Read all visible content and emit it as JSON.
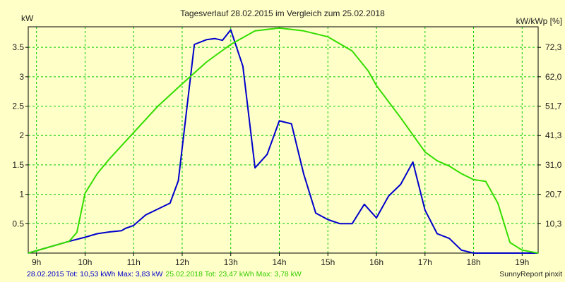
{
  "chart_data": {
    "type": "line",
    "title": "Tagesverlauf 28.02.2015 im Vergleich zum 25.02.2018",
    "ylabel_left": "kW",
    "ylabel_right": "kW/kWp [%]",
    "x_ticks": [
      "9h",
      "10h",
      "11h",
      "12h",
      "13h",
      "14h",
      "15h",
      "16h",
      "17h",
      "18h",
      "19h"
    ],
    "xlim": [
      8.83,
      19.33
    ],
    "y_left_ticks": [
      0.5,
      1,
      1.5,
      2,
      2.5,
      3,
      3.5
    ],
    "y_left_tick_labels": [
      "0.5",
      "1",
      "1.5",
      "2",
      "2.5",
      "3",
      "3.5"
    ],
    "ylim": [
      0,
      3.85
    ],
    "y_right_ticks": [
      10.3,
      20.7,
      31.0,
      41.3,
      51.7,
      62.0,
      72.3
    ],
    "y_right_tick_labels": [
      "10,3",
      "20,7",
      "31,0",
      "41,3",
      "51,7",
      "62,0",
      "72,3"
    ],
    "grid": true,
    "colors": {
      "background": "#ffffc8",
      "grid": "#00cc00",
      "axis": "#000000"
    },
    "series": [
      {
        "color": "#0000cc",
        "x": [
          8.83,
          9.67,
          10.0,
          10.25,
          10.5,
          10.75,
          10.83,
          11.0,
          11.25,
          11.5,
          11.75,
          11.92,
          12.25,
          12.5,
          12.67,
          12.83,
          13.0,
          13.25,
          13.5,
          13.75,
          14.0,
          14.25,
          14.5,
          14.75,
          15.0,
          15.25,
          15.5,
          15.75,
          16.0,
          16.25,
          16.5,
          16.75,
          17.0,
          17.25,
          17.5,
          17.75,
          18.0,
          18.25,
          19.33
        ],
        "y": [
          0.0,
          0.2,
          0.27,
          0.33,
          0.36,
          0.38,
          0.42,
          0.47,
          0.65,
          0.75,
          0.85,
          1.23,
          3.55,
          3.63,
          3.65,
          3.62,
          3.8,
          3.18,
          1.45,
          1.68,
          2.25,
          2.2,
          1.35,
          0.68,
          0.57,
          0.5,
          0.5,
          0.83,
          0.6,
          0.97,
          1.17,
          1.55,
          0.73,
          0.33,
          0.25,
          0.05,
          0.0,
          0.0,
          0.0
        ]
      },
      {
        "color": "#33dd00",
        "x": [
          8.83,
          9.67,
          9.83,
          10.0,
          10.25,
          10.5,
          11.0,
          11.5,
          12.0,
          12.5,
          13.0,
          13.5,
          14.0,
          14.5,
          15.0,
          15.5,
          15.83,
          16.0,
          16.5,
          17.0,
          17.25,
          17.5,
          17.75,
          18.0,
          18.25,
          18.5,
          18.75,
          19.0,
          19.33
        ],
        "y": [
          0.0,
          0.2,
          0.35,
          1.02,
          1.35,
          1.6,
          2.05,
          2.5,
          2.88,
          3.25,
          3.55,
          3.78,
          3.83,
          3.78,
          3.68,
          3.44,
          3.1,
          2.85,
          2.3,
          1.72,
          1.57,
          1.48,
          1.35,
          1.25,
          1.22,
          0.85,
          0.18,
          0.05,
          0.0
        ]
      }
    ],
    "footer": {
      "s1_text": "28.02.2015 Tot: 10,53 kWh Max: 3,83 kW",
      "s2_text": "25.02.2018 Tot: 23,47 kWh Max: 3,78 kW",
      "credit": "SunnyReport pinxit"
    }
  }
}
